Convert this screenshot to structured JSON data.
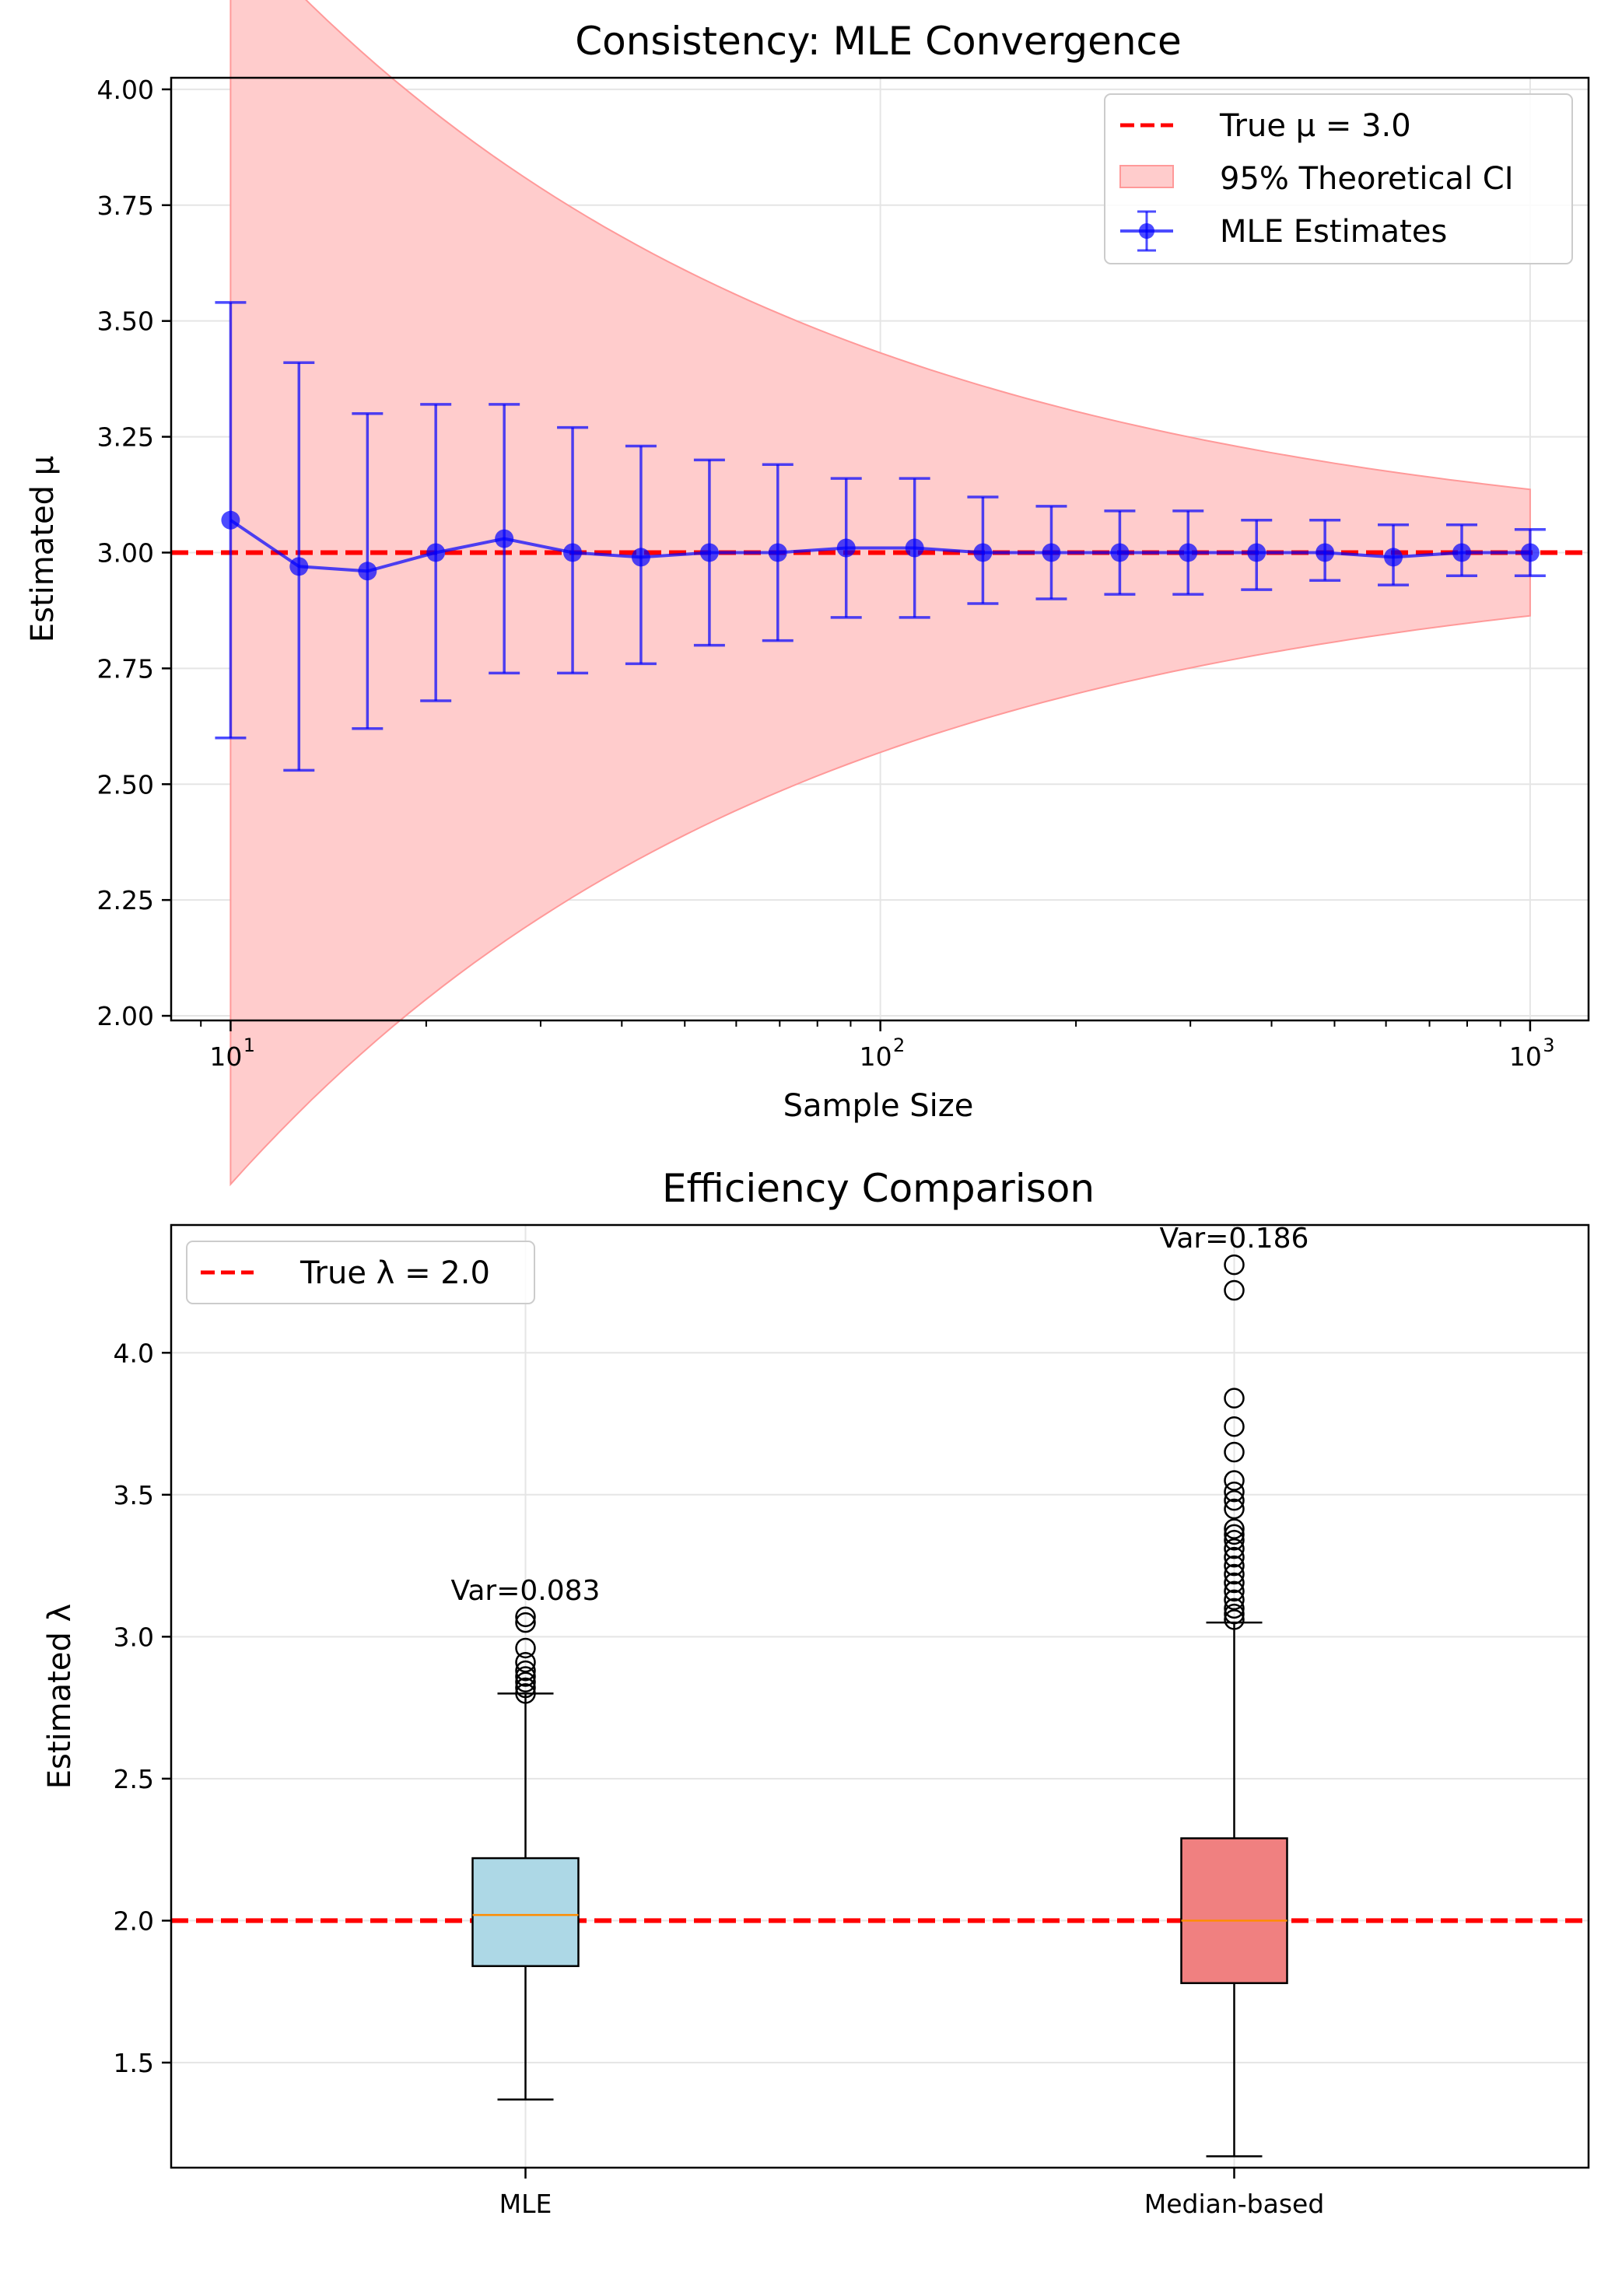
{
  "chart_data": [
    {
      "type": "line",
      "title": "Consistency: MLE Convergence",
      "xlabel": "Sample Size",
      "ylabel": "Estimated μ",
      "xscale": "log",
      "xlim": [
        8.1,
        1230
      ],
      "ylim": [
        1.99,
        4.025
      ],
      "yticks": [
        2.0,
        2.25,
        2.5,
        2.75,
        3.0,
        3.25,
        3.5,
        3.75,
        4.0
      ],
      "ytick_labels": [
        "2.00",
        "2.25",
        "2.50",
        "2.75",
        "3.00",
        "3.25",
        "3.50",
        "3.75",
        "4.00"
      ],
      "xticks_major": [
        10,
        100,
        1000
      ],
      "xtick_labels": [
        {
          "base": "10",
          "exp": "1"
        },
        {
          "base": "10",
          "exp": "2"
        },
        {
          "base": "10",
          "exp": "3"
        }
      ],
      "grid": true,
      "legend_position": "top-right",
      "legend": [
        "True μ = 3.0",
        "95% Theoretical CI",
        "MLE Estimates"
      ],
      "true_value": 3.0,
      "ci_sigma": 2.2,
      "series": [
        {
          "name": "MLE Estimates",
          "color": "#0000ff",
          "x": [
            10,
            12.74,
            16.24,
            20.69,
            26.37,
            33.6,
            42.81,
            54.56,
            69.52,
            88.59,
            112.9,
            143.8,
            183.3,
            233.6,
            297.6,
            379.3,
            483.3,
            615.8,
            784.8,
            1000
          ],
          "y": [
            3.07,
            2.97,
            2.96,
            3.0,
            3.03,
            3.0,
            2.99,
            3.0,
            3.0,
            3.01,
            3.01,
            3.0,
            3.0,
            3.0,
            3.0,
            3.0,
            3.0,
            2.99,
            3.0,
            3.0
          ],
          "err_low": [
            2.6,
            2.53,
            2.62,
            2.68,
            2.74,
            2.74,
            2.76,
            2.8,
            2.81,
            2.86,
            2.86,
            2.89,
            2.9,
            2.91,
            2.91,
            2.92,
            2.94,
            2.93,
            2.95,
            2.95
          ],
          "err_high": [
            3.54,
            3.41,
            3.3,
            3.32,
            3.32,
            3.27,
            3.23,
            3.2,
            3.19,
            3.16,
            3.16,
            3.12,
            3.1,
            3.09,
            3.09,
            3.07,
            3.07,
            3.06,
            3.06,
            3.05
          ]
        }
      ],
      "colors": {
        "true_line": "#ff0000",
        "ci_fill": "#ffcccc",
        "ci_edge": "#ff9999",
        "series": "#0000ff"
      }
    },
    {
      "type": "box",
      "title": "Efficiency Comparison",
      "xlabel": "",
      "ylabel": "Estimated λ",
      "ylim": [
        1.13,
        4.45
      ],
      "yticks": [
        1.5,
        2.0,
        2.5,
        3.0,
        3.5,
        4.0
      ],
      "ytick_labels": [
        "1.5",
        "2.0",
        "2.5",
        "3.0",
        "3.5",
        "4.0"
      ],
      "categories": [
        "MLE",
        "Median-based"
      ],
      "true_value": 2.0,
      "grid": true,
      "legend_position": "top-left",
      "legend": [
        "True λ = 2.0"
      ],
      "boxes": [
        {
          "name": "MLE",
          "whisker_low": 1.37,
          "q1": 1.84,
          "median": 2.02,
          "q3": 2.22,
          "whisker_high": 2.8,
          "outliers": [
            2.8,
            2.82,
            2.84,
            2.86,
            2.88,
            2.91,
            2.96,
            3.05,
            3.07
          ],
          "variance_label": "Var=0.083",
          "color": "#add8e6"
        },
        {
          "name": "Median-based",
          "whisker_low": 1.17,
          "q1": 1.78,
          "median": 2.0,
          "q3": 2.29,
          "whisker_high": 3.05,
          "outliers": [
            3.06,
            3.08,
            3.1,
            3.13,
            3.16,
            3.19,
            3.22,
            3.25,
            3.28,
            3.31,
            3.34,
            3.36,
            3.38,
            3.45,
            3.48,
            3.51,
            3.55,
            3.65,
            3.74,
            3.84,
            4.22,
            4.31
          ],
          "variance_label": "Var=0.186",
          "color": "#f08080"
        }
      ],
      "colors": {
        "true_line": "#ff0000",
        "median_line": "#ff8c00"
      }
    }
  ]
}
